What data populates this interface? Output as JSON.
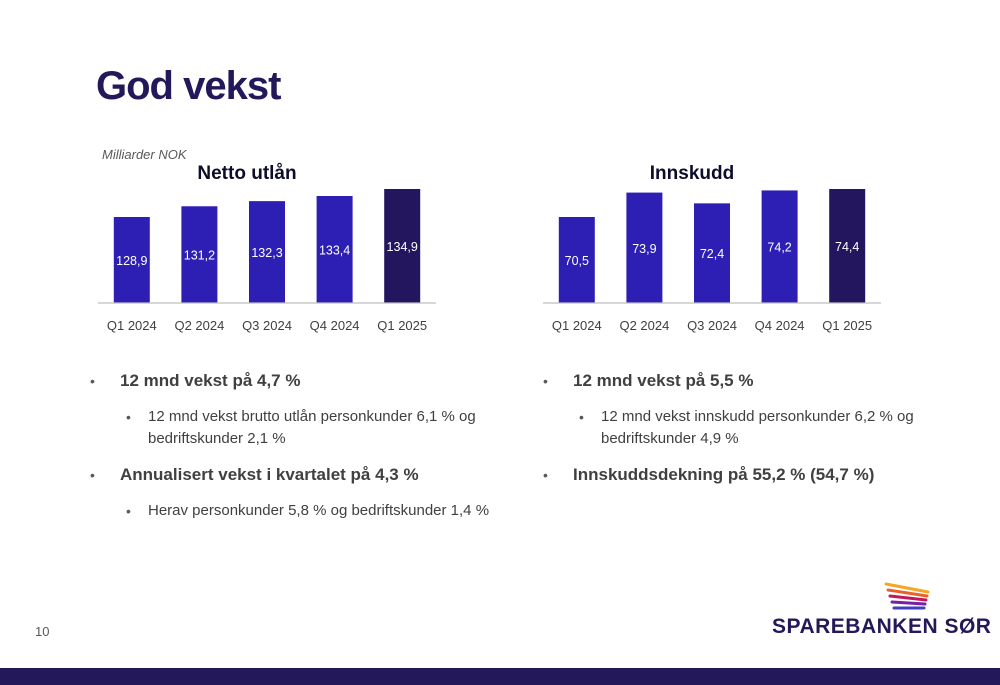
{
  "slide": {
    "title": "God vekst",
    "units_label": "Milliarder NOK",
    "page_number": "10"
  },
  "chart_data": [
    {
      "type": "bar",
      "title": "Netto utlån",
      "categories": [
        "Q1 2024",
        "Q2 2024",
        "Q3 2024",
        "Q4 2024",
        "Q1 2025"
      ],
      "values": [
        128.9,
        131.2,
        132.3,
        133.4,
        134.9
      ],
      "value_labels": [
        "128,9",
        "131,2",
        "132,3",
        "133,4",
        "134,9"
      ],
      "colors": [
        "#2d1fb4",
        "#2d1fb4",
        "#2d1fb4",
        "#2d1fb4",
        "#24165e"
      ],
      "grid": false
    },
    {
      "type": "bar",
      "title": "Innskudd",
      "categories": [
        "Q1 2024",
        "Q2 2024",
        "Q3 2024",
        "Q4 2024",
        "Q1 2025"
      ],
      "values": [
        70.5,
        73.9,
        72.4,
        74.2,
        74.4
      ],
      "value_labels": [
        "70,5",
        "73,9",
        "72,4",
        "74,2",
        "74,4"
      ],
      "colors": [
        "#2d1fb4",
        "#2d1fb4",
        "#2d1fb4",
        "#2d1fb4",
        "#24165e"
      ],
      "grid": false
    }
  ],
  "left_bullets": [
    {
      "level": 1,
      "text": "12 mnd vekst på 4,7 %"
    },
    {
      "level": 2,
      "text": "12 mnd vekst brutto utlån personkunder 6,1 % og bedriftskunder 2,1 %"
    },
    {
      "level": 1,
      "text": "Annualisert vekst i kvartalet på 4,3 %"
    },
    {
      "level": 2,
      "text": "Herav personkunder 5,8 % og bedriftskunder 1,4 %"
    }
  ],
  "right_bullets": [
    {
      "level": 1,
      "text": "12 mnd vekst på 5,5 %"
    },
    {
      "level": 2,
      "text": "12 mnd vekst innskudd personkunder 6,2 % og bedriftskunder 4,9 %"
    },
    {
      "level": 1,
      "text": "Innskuddsdekning på 55,2 % (54,7 %)"
    }
  ],
  "logo": {
    "text": "SPAREBANKEN SØR",
    "accent_colors": [
      "#f5a623",
      "#e8622c",
      "#c2185b",
      "#7b1fa2",
      "#3f3fbf"
    ]
  },
  "theme": {
    "brand": "#23195a",
    "bar": "#2d1fb4",
    "bar_highlight": "#24165e"
  }
}
